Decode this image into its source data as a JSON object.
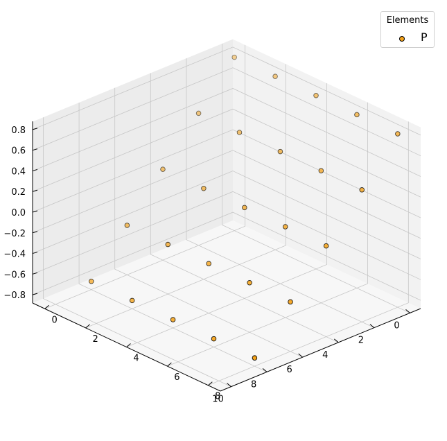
{
  "chart_data": {
    "type": "scatter",
    "projection": "3d",
    "legend": {
      "title": "Elements",
      "entries": [
        "P"
      ],
      "placement": "top-right"
    },
    "series": [
      {
        "name": "P",
        "color": "#f5a31a",
        "edge_color": "#000000",
        "points": [
          [
            0,
            0,
            0.8
          ],
          [
            2,
            0,
            0.8
          ],
          [
            4,
            0,
            0.8
          ],
          [
            6,
            0,
            0.8
          ],
          [
            8,
            0,
            0.8
          ],
          [
            0,
            2,
            0.4
          ],
          [
            2,
            2,
            0.4
          ],
          [
            4,
            2,
            0.4
          ],
          [
            6,
            2,
            0.4
          ],
          [
            8,
            2,
            0.4
          ],
          [
            0,
            4,
            0.0
          ],
          [
            2,
            4,
            0.0
          ],
          [
            4,
            4,
            0.0
          ],
          [
            6,
            4,
            0.0
          ],
          [
            8,
            4,
            0.0
          ],
          [
            0,
            6,
            -0.4
          ],
          [
            2,
            6,
            -0.4
          ],
          [
            4,
            6,
            -0.4
          ],
          [
            6,
            6,
            -0.4
          ],
          [
            8,
            6,
            -0.4
          ],
          [
            0,
            8,
            -0.8
          ],
          [
            2,
            8,
            -0.8
          ],
          [
            4,
            8,
            -0.8
          ],
          [
            6,
            8,
            -0.8
          ],
          [
            8,
            8,
            -0.8
          ]
        ]
      }
    ],
    "x_ticks": [
      "0",
      "2",
      "4",
      "6",
      "8"
    ],
    "y_ticks": [
      "0",
      "2",
      "4",
      "6",
      "8",
      "10"
    ],
    "z_ticks": [
      "0.8",
      "0.6",
      "0.4",
      "0.2",
      "0.0",
      "−0.2",
      "−0.4",
      "−0.6",
      "−0.8"
    ],
    "xlim": [
      -0.6,
      8.6
    ],
    "ylim": [
      -0.6,
      10.6
    ],
    "zlim": [
      -0.88,
      0.88
    ],
    "grid": true
  }
}
